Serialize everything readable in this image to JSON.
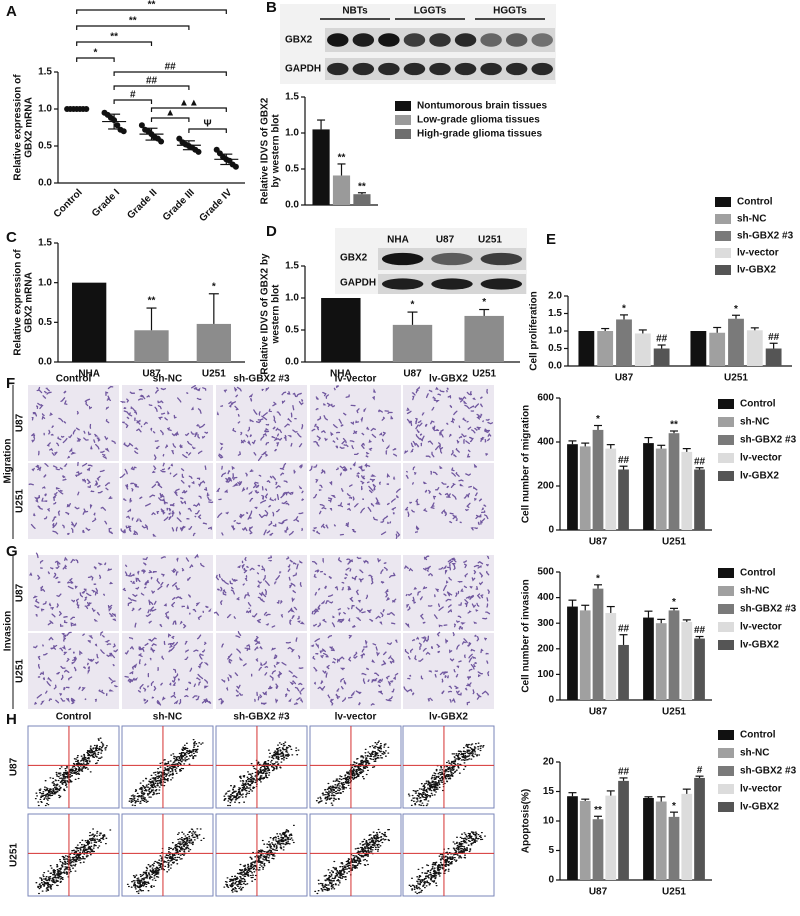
{
  "panel_labels": [
    "A",
    "B",
    "C",
    "D",
    "E",
    "F",
    "G",
    "H"
  ],
  "blot_b": {
    "groups": [
      "NBTs",
      "LGGTs",
      "HGGTs"
    ],
    "proteins": [
      "GBX2",
      "GAPDH"
    ]
  },
  "blot_d": {
    "lanes": [
      "NHA",
      "U87",
      "U251"
    ],
    "proteins": [
      "GBX2",
      "GAPDH"
    ]
  },
  "images_f": {
    "columns": [
      "Control",
      "sh-NC",
      "sh-GBX2 #3",
      "lv-vector",
      "lv-GBX2"
    ],
    "side": "Migration",
    "rows": [
      "U87",
      "U251"
    ]
  },
  "images_g": {
    "side": "Invasion",
    "rows": [
      "U87",
      "U251"
    ]
  },
  "images_h": {
    "columns": [
      "Control",
      "sh-NC",
      "sh-GBX2 #3",
      "lv-vector",
      "lv-GBX2"
    ],
    "rows": [
      "U87",
      "U251"
    ]
  },
  "chart_data": [
    {
      "type": "dot",
      "categories": [
        "Control",
        "Grade I",
        "Grade II",
        "Grade III",
        "Grade IV"
      ],
      "ylabel": [
        "Relative expression of",
        "GBX2 mRNA"
      ],
      "values": [
        1.0,
        0.83,
        0.66,
        0.51,
        0.32
      ],
      "errors": [
        0,
        0.1,
        0.08,
        0.06,
        0.07
      ],
      "points": [
        [
          1.0,
          1.0,
          1.0,
          1.0,
          1.0,
          1.0,
          1.0
        ],
        [
          0.95,
          0.92,
          0.88,
          0.85,
          0.78,
          0.72,
          0.7
        ],
        [
          0.78,
          0.72,
          0.7,
          0.66,
          0.62,
          0.6,
          0.56
        ],
        [
          0.6,
          0.55,
          0.52,
          0.5,
          0.48,
          0.45,
          0.42
        ],
        [
          0.45,
          0.4,
          0.35,
          0.32,
          0.3,
          0.25,
          0.22
        ]
      ],
      "brackets": [
        {
          "from": 0,
          "to": 4,
          "label": "**"
        },
        {
          "from": 0,
          "to": 3,
          "label": "**"
        },
        {
          "from": 0,
          "to": 2,
          "label": "**"
        },
        {
          "from": 0,
          "to": 1,
          "label": "*"
        },
        {
          "from": 1,
          "to": 4,
          "label": "##"
        },
        {
          "from": 1,
          "to": 3,
          "label": "##"
        },
        {
          "from": 1,
          "to": 2,
          "label": "#"
        },
        {
          "from": 2,
          "to": 4,
          "label": "▲▲"
        },
        {
          "from": 2,
          "to": 3,
          "label": "▲"
        },
        {
          "from": 3,
          "to": 4,
          "label": "Ψ"
        }
      ],
      "ylim": [
        0,
        1.5
      ],
      "yticks": [
        {
          "value": 0,
          "label": "0.0"
        },
        0.5,
        {
          "value": 1,
          "label": "1.0"
        },
        1.5
      ],
      "color": "#111111"
    },
    {
      "type": "grouped_bar",
      "categories": [
        null
      ],
      "ylabel": [
        "Relative IDVS of GBX2",
        "by western blot"
      ],
      "series": [
        {
          "name": "Nontumorous brain tissues",
          "color": "#111111",
          "values": [
            1.05
          ],
          "errors": [
            0.13
          ],
          "annotations": [
            null
          ]
        },
        {
          "name": "Low-grade glioma tissues",
          "color": "#9a9a9a",
          "values": [
            0.41
          ],
          "errors": [
            0.16
          ],
          "annotations": [
            "**"
          ]
        },
        {
          "name": "High-grade glioma tissues",
          "color": "#6e6e6e",
          "values": [
            0.15
          ],
          "errors": [
            0.02
          ],
          "annotations": [
            "**"
          ]
        }
      ],
      "ylim": [
        0,
        1.5
      ],
      "yticks": [
        {
          "value": 0,
          "label": "0.0"
        },
        0.5,
        {
          "value": 1,
          "label": "1.0"
        },
        1.5
      ]
    },
    {
      "type": "bar",
      "categories": [
        "NHA",
        "U87",
        "U251"
      ],
      "ylabel": [
        "Relative expression of",
        "GBX2 mRNA"
      ],
      "values": [
        1.0,
        0.4,
        0.48
      ],
      "errors": [
        0,
        0.28,
        0.38
      ],
      "annotations": [
        null,
        "**",
        "*"
      ],
      "colors": [
        "#111111",
        "#8c8c8c",
        "#8c8c8c"
      ],
      "ylim": [
        0,
        1.5
      ],
      "yticks": [
        {
          "value": 0,
          "label": "0.0"
        },
        0.5,
        {
          "value": 1,
          "label": "1.0"
        },
        1.5
      ]
    },
    {
      "type": "bar",
      "categories": [
        "NHA",
        "U87",
        "U251"
      ],
      "ylabel": [
        "Relative IDVS of GBX2 by",
        "western blot"
      ],
      "values": [
        1.0,
        0.58,
        0.72
      ],
      "errors": [
        0,
        0.2,
        0.1
      ],
      "annotations": [
        null,
        "*",
        "*"
      ],
      "colors": [
        "#111111",
        "#8c8c8c",
        "#8c8c8c"
      ],
      "ylim": [
        0,
        1.5
      ],
      "yticks": [
        {
          "value": 0,
          "label": "0.0"
        },
        0.5,
        {
          "value": 1,
          "label": "1.0"
        },
        1.5
      ]
    },
    {
      "type": "grouped_bar",
      "categories": [
        "U87",
        "U251"
      ],
      "ylabel": [
        "Cell proliferation"
      ],
      "series": [
        {
          "name": "Control",
          "color": "#111111",
          "values": [
            1.0,
            1.0
          ],
          "errors": [
            0,
            0
          ],
          "annotations": [
            null,
            null
          ]
        },
        {
          "name": "sh-NC",
          "color": "#a0a0a0",
          "values": [
            1.0,
            0.95
          ],
          "errors": [
            0.07,
            0.15
          ],
          "annotations": [
            null,
            null
          ]
        },
        {
          "name": "sh-GBX2 #3",
          "color": "#7a7a7a",
          "values": [
            1.33,
            1.35
          ],
          "errors": [
            0.13,
            0.1
          ],
          "annotations": [
            "*",
            "*"
          ]
        },
        {
          "name": "lv-vector",
          "color": "#dcdcdc",
          "values": [
            0.93,
            1.02
          ],
          "errors": [
            0.1,
            0.07
          ],
          "annotations": [
            null,
            null
          ]
        },
        {
          "name": "lv-GBX2",
          "color": "#555555",
          "values": [
            0.5,
            0.5
          ],
          "errors": [
            0.1,
            0.15
          ],
          "annotations": [
            "##",
            "##"
          ]
        }
      ],
      "ylim": [
        0,
        2
      ],
      "yticks": [
        {
          "value": 0,
          "label": "0.0"
        },
        0.5,
        {
          "value": 1,
          "label": "1.0"
        },
        1.5,
        {
          "value": 2,
          "label": "2.0"
        }
      ]
    },
    {
      "type": "grouped_bar",
      "categories": [
        "U87",
        "U251"
      ],
      "ylabel": [
        "Cell number of migration"
      ],
      "series": [
        {
          "name": "Control",
          "color": "#111111",
          "values": [
            390,
            395
          ],
          "errors": [
            15,
            25
          ],
          "annotations": [
            null,
            null
          ]
        },
        {
          "name": "sh-NC",
          "color": "#a0a0a0",
          "values": [
            380,
            370
          ],
          "errors": [
            15,
            15
          ],
          "annotations": [
            null,
            null
          ]
        },
        {
          "name": "sh-GBX2 #3",
          "color": "#7a7a7a",
          "values": [
            455,
            440
          ],
          "errors": [
            20,
            10
          ],
          "annotations": [
            "*",
            "**"
          ]
        },
        {
          "name": "lv-vector",
          "color": "#dcdcdc",
          "values": [
            370,
            355
          ],
          "errors": [
            18,
            15
          ],
          "annotations": [
            null,
            null
          ]
        },
        {
          "name": "lv-GBX2",
          "color": "#555555",
          "values": [
            275,
            275
          ],
          "errors": [
            15,
            8
          ],
          "annotations": [
            "##",
            "##"
          ]
        }
      ],
      "ylim": [
        0,
        600
      ],
      "yticks": [
        0,
        200,
        400,
        600
      ]
    },
    {
      "type": "grouped_bar",
      "categories": [
        "U87",
        "U251"
      ],
      "ylabel": [
        "Cell number of invasion"
      ],
      "series": [
        {
          "name": "Control",
          "color": "#111111",
          "values": [
            365,
            322
          ],
          "errors": [
            25,
            25
          ],
          "annotations": [
            null,
            null
          ]
        },
        {
          "name": "sh-NC",
          "color": "#a0a0a0",
          "values": [
            350,
            300
          ],
          "errors": [
            20,
            15
          ],
          "annotations": [
            null,
            null
          ]
        },
        {
          "name": "sh-GBX2 #3",
          "color": "#7a7a7a",
          "values": [
            435,
            350
          ],
          "errors": [
            15,
            8
          ],
          "annotations": [
            "*",
            "*"
          ]
        },
        {
          "name": "lv-vector",
          "color": "#dcdcdc",
          "values": [
            340,
            305
          ],
          "errors": [
            25,
            8
          ],
          "annotations": [
            null,
            null
          ]
        },
        {
          "name": "lv-GBX2",
          "color": "#555555",
          "values": [
            215,
            240
          ],
          "errors": [
            40,
            8
          ],
          "annotations": [
            "##",
            "##"
          ]
        }
      ],
      "ylim": [
        0,
        500
      ],
      "yticks": [
        0,
        100,
        200,
        300,
        400,
        500
      ]
    },
    {
      "type": "grouped_bar",
      "categories": [
        "U87",
        "U251"
      ],
      "ylabel": [
        "Apoptosis(%)"
      ],
      "series": [
        {
          "name": "Control",
          "color": "#111111",
          "values": [
            14.2,
            13.9
          ],
          "errors": [
            0.6,
            0.2
          ],
          "annotations": [
            null,
            null
          ]
        },
        {
          "name": "sh-NC",
          "color": "#a0a0a0",
          "values": [
            13.4,
            13.3
          ],
          "errors": [
            0.3,
            0.8
          ],
          "annotations": [
            null,
            null
          ]
        },
        {
          "name": "sh-GBX2 #3",
          "color": "#7a7a7a",
          "values": [
            10.3,
            10.7
          ],
          "errors": [
            0.5,
            0.8
          ],
          "annotations": [
            "**",
            "*"
          ]
        },
        {
          "name": "lv-vector",
          "color": "#dcdcdc",
          "values": [
            14.3,
            14.6
          ],
          "errors": [
            0.8,
            0.8
          ],
          "annotations": [
            null,
            null
          ]
        },
        {
          "name": "lv-GBX2",
          "color": "#555555",
          "values": [
            16.8,
            17.3
          ],
          "errors": [
            0.5,
            0.3
          ],
          "annotations": [
            "##",
            "#"
          ]
        }
      ],
      "ylim": [
        0,
        20
      ],
      "yticks": [
        0,
        5,
        10,
        15,
        20
      ]
    }
  ]
}
